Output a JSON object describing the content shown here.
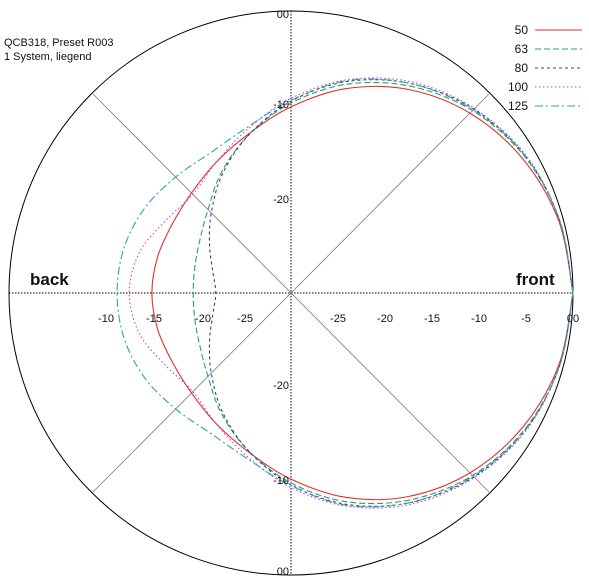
{
  "header": {
    "line1": "QCB318, Preset R003",
    "line2": "1 System, liegend"
  },
  "chart_data": {
    "type": "polar",
    "radial_unit": "dB",
    "radial_range_db": [
      -30,
      0
    ],
    "grid": true,
    "legend_position": "top-right",
    "labels": {
      "front": "front",
      "back": "back"
    },
    "axis_ticks": {
      "right": [
        "-25",
        "-20",
        "-15",
        "-10",
        "-5",
        "00"
      ],
      "left": [
        "-25",
        "-20",
        "-15",
        "-10"
      ],
      "up": [
        "00",
        "-10",
        "-20"
      ],
      "down": [
        "-20",
        "-10",
        "00"
      ]
    },
    "angles_deg": [
      0,
      15,
      30,
      45,
      60,
      75,
      90,
      105,
      120,
      135,
      150,
      165,
      180
    ],
    "series": [
      {
        "name": "50",
        "color": "#e03030",
        "dash": "",
        "db": [
          0,
          -0.5,
          -1.5,
          -3.0,
          -5.0,
          -7.5,
          -10.2,
          -12.5,
          -14.0,
          -15.0,
          -15.4,
          -15.3,
          -15.2
        ]
      },
      {
        "name": "63",
        "color": "#26a65b",
        "dash": "6,3",
        "db": [
          0,
          -0.4,
          -1.2,
          -2.6,
          -4.6,
          -7.0,
          -9.8,
          -12.6,
          -15.2,
          -17.5,
          -18.8,
          -19.4,
          -19.6
        ]
      },
      {
        "name": "80",
        "color": "#3b3b9a",
        "dash": "3,3",
        "db": [
          0,
          -0.4,
          -1.1,
          -2.4,
          -4.3,
          -6.7,
          -9.6,
          -12.6,
          -15.4,
          -18.0,
          -20.0,
          -21.4,
          -22.0
        ]
      },
      {
        "name": "100",
        "color": "#d63cc8",
        "dash": "1.5,2.5",
        "db": [
          0,
          -0.4,
          -1.0,
          -2.3,
          -4.1,
          -6.5,
          -9.3,
          -12.0,
          -14.0,
          -15.2,
          -14.6,
          -13.3,
          -12.8
        ]
      },
      {
        "name": "125",
        "color": "#29a8a8",
        "dash": "8,3,2,3",
        "db": [
          0,
          -0.4,
          -1.1,
          -2.5,
          -4.3,
          -6.6,
          -9.5,
          -11.8,
          -12.8,
          -12.6,
          -12.0,
          -11.6,
          -11.5
        ]
      }
    ]
  }
}
